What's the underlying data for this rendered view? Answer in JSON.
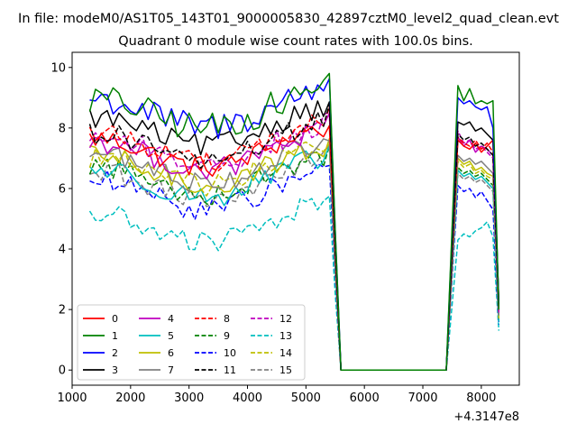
{
  "figure": {
    "suptitle": "In file: modeM0/AS1T05_143T01_9000005830_42897cztM0_level2_quad_clean.evt",
    "title": "Quadrant 0 module wise count rates with 100.0s bins.",
    "offset_label": "+4.3147e8"
  },
  "chart_data": {
    "type": "line",
    "title": "Quadrant 0 module wise count rates with 100.0s bins.",
    "xlabel": "",
    "ylabel": "",
    "x_offset": 431470000,
    "xlim": [
      1000,
      8650
    ],
    "ylim": [
      -0.5,
      10.5
    ],
    "xticks": [
      1000,
      2000,
      3000,
      4000,
      5000,
      6000,
      7000,
      8000
    ],
    "yticks": [
      0,
      2,
      4,
      6,
      8,
      10
    ],
    "grid": false,
    "legend": {
      "location": "lower-left",
      "ncol": 4
    },
    "segments": [
      {
        "x_start": 1300,
        "x_end": 5400,
        "step": 100
      },
      {
        "x_start": 7600,
        "x_end": 8300,
        "step": 100
      }
    ],
    "gap": {
      "x_start": 5600,
      "x_end": 7400,
      "value": 0
    },
    "series": [
      {
        "name": "0",
        "color": "#ff0000",
        "dash": "solid",
        "level": 7.1,
        "post": [
          7.6,
          7.4,
          7.3,
          7.5,
          7.2,
          7.4,
          7.6,
          2.3
        ]
      },
      {
        "name": "1",
        "color": "#008000",
        "dash": "solid",
        "level": 8.4,
        "post": [
          9.4,
          8.9,
          9.3,
          8.8,
          8.9,
          8.8,
          8.9,
          2.0
        ]
      },
      {
        "name": "2",
        "color": "#0000ff",
        "dash": "solid",
        "level": 8.4,
        "post": [
          9.0,
          8.8,
          8.9,
          8.7,
          8.6,
          8.7,
          8.0,
          2.2
        ]
      },
      {
        "name": "3",
        "color": "#000000",
        "dash": "solid",
        "level": 7.8,
        "post": [
          8.2,
          8.1,
          8.2,
          7.9,
          8.0,
          7.8,
          7.6,
          2.2
        ]
      },
      {
        "name": "4",
        "color": "#bf00bf",
        "dash": "solid",
        "level": 7.0,
        "post": [
          7.7,
          7.4,
          7.6,
          7.2,
          7.4,
          7.3,
          7.1,
          1.9
        ]
      },
      {
        "name": "5",
        "color": "#00bfbf",
        "dash": "solid",
        "level": 6.1,
        "post": [
          6.6,
          6.4,
          6.5,
          6.3,
          6.4,
          6.2,
          6.0,
          1.6
        ]
      },
      {
        "name": "6",
        "color": "#bfbf00",
        "dash": "solid",
        "level": 6.5,
        "post": [
          7.0,
          6.8,
          6.9,
          6.6,
          6.7,
          6.5,
          6.4,
          1.8
        ]
      },
      {
        "name": "7",
        "color": "#808080",
        "dash": "solid",
        "level": 6.6,
        "post": [
          7.1,
          6.9,
          7.0,
          6.8,
          6.9,
          6.7,
          6.5,
          1.8
        ]
      },
      {
        "name": "8",
        "color": "#ff0000",
        "dash": "dashed",
        "level": 7.3,
        "post": [
          7.7,
          7.5,
          7.4,
          7.6,
          7.3,
          7.5,
          7.2,
          2.0
        ]
      },
      {
        "name": "9",
        "color": "#008000",
        "dash": "dashed",
        "level": 6.2,
        "post": [
          6.7,
          6.5,
          6.6,
          6.4,
          6.5,
          6.3,
          6.1,
          1.7
        ]
      },
      {
        "name": "10",
        "color": "#0000ff",
        "dash": "dashed",
        "level": 5.7,
        "post": [
          6.1,
          5.9,
          6.0,
          5.7,
          5.9,
          5.6,
          5.3,
          1.5
        ]
      },
      {
        "name": "11",
        "color": "#000000",
        "dash": "dashed",
        "level": 7.3,
        "post": [
          7.8,
          7.6,
          7.7,
          7.4,
          7.5,
          7.3,
          7.1,
          2.0
        ]
      },
      {
        "name": "12",
        "color": "#bf00bf",
        "dash": "dashed",
        "level": 7.2,
        "post": [
          7.9,
          7.5,
          7.6,
          7.3,
          7.4,
          7.2,
          7.0,
          1.9
        ]
      },
      {
        "name": "13",
        "color": "#00bfbf",
        "dash": "dashed",
        "level": 4.6,
        "post": [
          4.3,
          4.5,
          4.4,
          4.6,
          4.7,
          4.9,
          4.4,
          1.3
        ]
      },
      {
        "name": "14",
        "color": "#bfbf00",
        "dash": "dashed",
        "level": 6.5,
        "post": [
          6.9,
          6.7,
          6.8,
          6.5,
          6.6,
          6.4,
          6.3,
          1.7
        ]
      },
      {
        "name": "15",
        "color": "#808080",
        "dash": "dashed",
        "level": 6.0,
        "post": [
          6.5,
          6.3,
          6.4,
          6.2,
          6.3,
          6.1,
          5.9,
          1.6
        ]
      }
    ]
  }
}
